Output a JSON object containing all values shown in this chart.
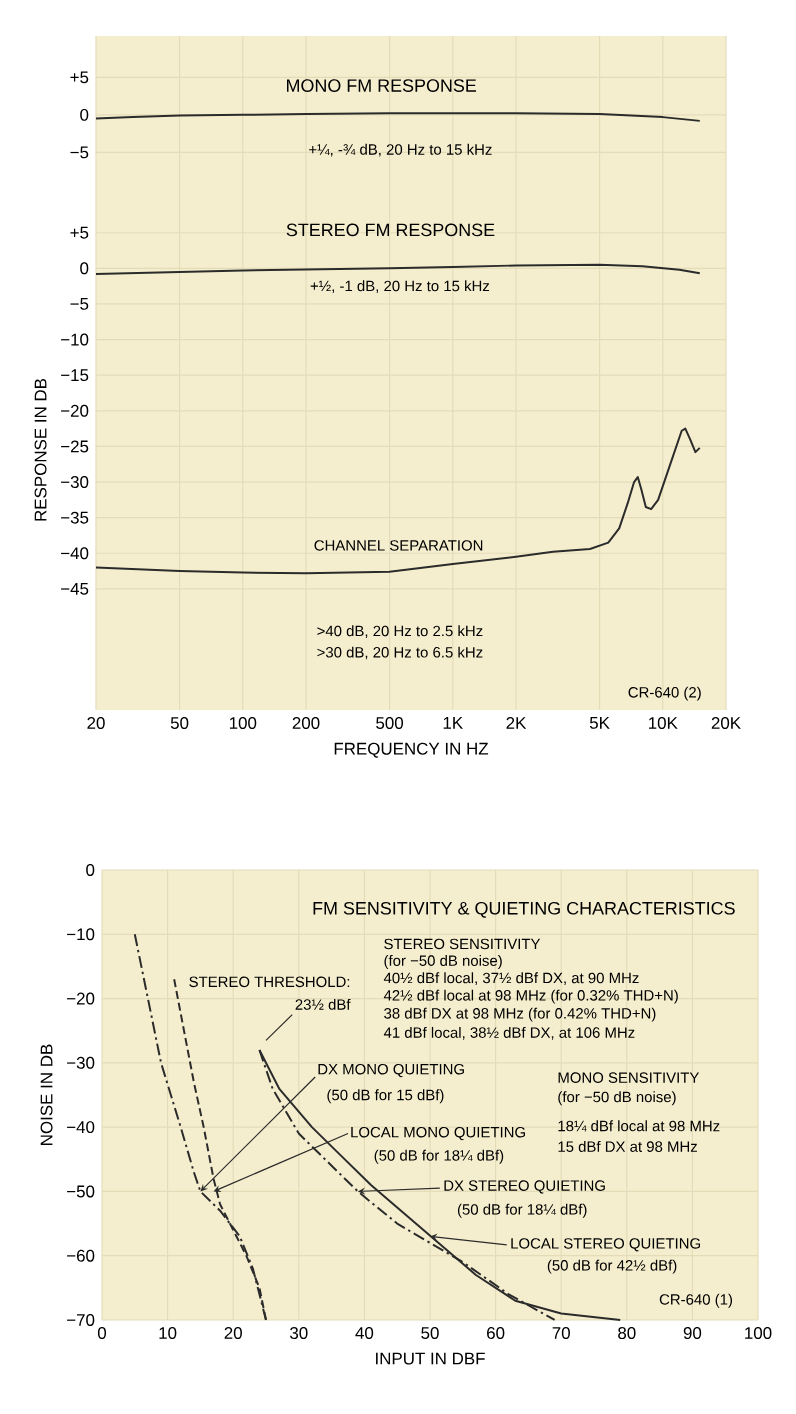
{
  "chart_data": [
    {
      "type": "line",
      "title": "MONO FM RESPONSE",
      "log": "x",
      "xlim": [
        20,
        20000
      ],
      "ylim": [
        -10,
        10.5
      ],
      "grid": true,
      "tick_labels": "y",
      "xticks": [
        20,
        50,
        100,
        200,
        500,
        1000,
        2000,
        5000,
        10000,
        20000
      ],
      "yticks": [
        {
          "value": 5,
          "label": "+5"
        },
        0,
        {
          "value": -5,
          "label": "−5"
        }
      ],
      "series": [
        {
          "color": "#2b2b2b",
          "line_style": "solid",
          "x": [
            20,
            30,
            50,
            100,
            200,
            500,
            1000,
            2000,
            5000,
            10000,
            15000
          ],
          "values": [
            -0.5,
            -0.3,
            -0.1,
            0,
            0.1,
            0.2,
            0.2,
            0.2,
            0.1,
            -0.3,
            -0.8
          ]
        }
      ],
      "annotations": [
        "+¼, -¾ dB, 20 Hz to 15 kHz"
      ]
    },
    {
      "type": "line",
      "title": "STEREO FM RESPONSE",
      "xlabel": "FREQUENCY IN HZ",
      "ylabel": "RESPONSE IN DB",
      "log": "x",
      "xlim": [
        20,
        20000
      ],
      "ylim": [
        -62,
        11
      ],
      "grid": true,
      "xticks": [
        20,
        50,
        100,
        200,
        500,
        {
          "value": 1000,
          "label": "1K"
        },
        {
          "value": 2000,
          "label": "2K"
        },
        {
          "value": 5000,
          "label": "5K"
        },
        {
          "value": 10000,
          "label": "10K"
        },
        {
          "value": 20000,
          "label": "20K"
        }
      ],
      "yticks": [
        {
          "value": 5,
          "label": "+5"
        },
        0,
        {
          "value": -5,
          "label": "−5"
        },
        {
          "value": -10,
          "label": "−10"
        },
        {
          "value": -15,
          "label": "−15"
        },
        {
          "value": -20,
          "label": "−20"
        },
        {
          "value": -25,
          "label": "−25"
        },
        {
          "value": -30,
          "label": "−30"
        },
        {
          "value": -35,
          "label": "−35"
        },
        {
          "value": -40,
          "label": "−40"
        },
        {
          "value": -45,
          "label": "−45"
        }
      ],
      "series": [
        {
          "color": "#2b2b2b",
          "line_style": "solid",
          "x": [
            20,
            50,
            100,
            500,
            1000,
            2000,
            5000,
            8000,
            12000,
            15000
          ],
          "values": [
            -0.8,
            -0.5,
            -0.3,
            0,
            0.2,
            0.4,
            0.5,
            0.3,
            -0.2,
            -0.7
          ]
        },
        {
          "color": "#2b2b2b",
          "line_style": "solid",
          "x": [
            20,
            50,
            100,
            200,
            500,
            1000,
            2000,
            3000,
            4500,
            5500,
            6200,
            6800,
            7300,
            7600,
            7900,
            8300,
            8800,
            9500,
            11000,
            12300,
            12800,
            13500,
            14300,
            15000
          ],
          "values": [
            -42,
            -42.5,
            -42.7,
            -42.8,
            -42.6,
            -41.5,
            -40.5,
            -39.8,
            -39.4,
            -38.5,
            -36.5,
            -33,
            -30,
            -29.3,
            -31,
            -33.5,
            -33.8,
            -32.5,
            -27,
            -22.8,
            -22.5,
            -24,
            -25.8,
            -25.2
          ]
        }
      ],
      "annotations": [
        "+½, -1 dB, 20 Hz to 15 kHz",
        "CHANNEL SEPARATION",
        ">40 dB, 20 Hz to 2.5 kHz",
        ">30 dB, 20 Hz to 6.5 kHz",
        "CR-640 (2)"
      ]
    },
    {
      "type": "line",
      "title": "FM SENSITIVITY & QUIETING CHARACTERISTICS",
      "xlabel": "INPUT IN DBF",
      "ylabel": "NOISE IN DB",
      "xlim": [
        0,
        100
      ],
      "ylim": [
        -70,
        0
      ],
      "grid": true,
      "xticks": [
        0,
        10,
        20,
        30,
        40,
        50,
        60,
        70,
        80,
        90,
        100
      ],
      "yticks": [
        0,
        {
          "value": -10,
          "label": "−10"
        },
        {
          "value": -20,
          "label": "−20"
        },
        {
          "value": -30,
          "label": "−30"
        },
        {
          "value": -40,
          "label": "−40"
        },
        {
          "value": -50,
          "label": "−50"
        },
        {
          "value": -60,
          "label": "−60"
        },
        {
          "value": -70,
          "label": "−70"
        }
      ],
      "series": [
        {
          "color": "#2b2b2b",
          "line_style": "dashdot",
          "x": [
            5,
            7,
            9,
            12,
            14,
            15,
            18,
            21,
            23,
            24,
            25
          ],
          "values": [
            -10,
            -20,
            -30,
            -40,
            -47,
            -50,
            -53,
            -57,
            -62,
            -66,
            -70
          ]
        },
        {
          "color": "#2b2b2b",
          "line_style": "dashed",
          "x": [
            11,
            12.5,
            14,
            15.5,
            17,
            18,
            20,
            22,
            24,
            25
          ],
          "values": [
            -17,
            -25,
            -33,
            -40,
            -48,
            -52,
            -56,
            -60,
            -65,
            -70
          ]
        },
        {
          "color": "#2b2b2b",
          "line_style": "dashdot",
          "x": [
            24,
            26,
            30,
            35,
            39,
            45,
            55,
            62,
            69
          ],
          "values": [
            -28,
            -34,
            -41,
            -46,
            -50,
            -55,
            -61,
            -66,
            -70
          ]
        },
        {
          "color": "#2b2b2b",
          "line_style": "solid",
          "x": [
            24,
            27,
            32,
            36,
            41,
            49,
            57,
            63,
            70,
            79
          ],
          "values": [
            -28,
            -34,
            -40,
            -44,
            -49,
            -56,
            -63,
            -67,
            -69,
            -70
          ]
        }
      ],
      "annotations": [
        "STEREO SENSITIVITY",
        "(for −50 dB noise)",
        "40½ dBf local, 37½ dBf DX, at 90 MHz",
        "42½ dBf local at 98 MHz (for 0.32% THD+N)",
        "38 dBf DX at 98 MHz (for 0.42% THD+N)",
        "41 dBf local, 38½ dBf DX, at 106 MHz",
        "STEREO THRESHOLD:",
        "23½ dBf",
        "MONO SENSITIVITY",
        "(for −50 dB noise)",
        "18¼ dBf local at 98 MHz",
        "15 dBf DX at 98 MHz",
        {
          "text": "DX MONO QUIETING",
          "x": 15,
          "y": -50
        },
        "(50 dB for 15 dBf)",
        {
          "text": "LOCAL MONO QUIETING",
          "x": 17,
          "y": -50
        },
        "(50 dB for 18¼ dBf)",
        {
          "text": "DX STEREO QUIETING",
          "x": 39,
          "y": -50
        },
        "(50 dB for 18¼ dBf)",
        {
          "text": "LOCAL STEREO QUIETING",
          "x": 50,
          "y": -57
        },
        "(50 dB for 42½ dBf)",
        "CR-640 (1)"
      ]
    }
  ]
}
